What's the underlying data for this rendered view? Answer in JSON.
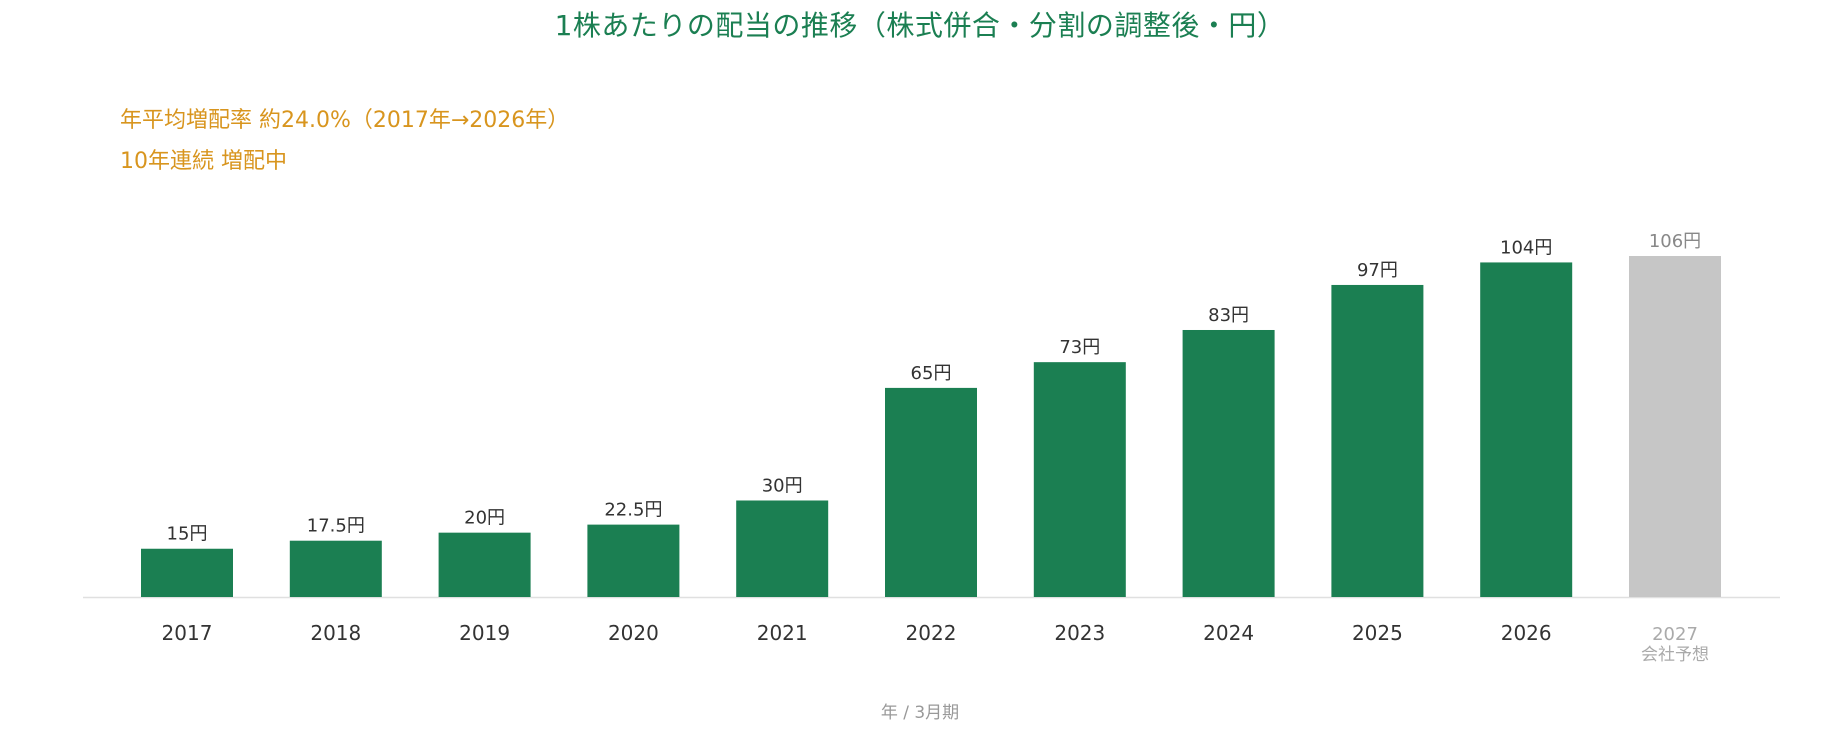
{
  "chart_data": {
    "type": "bar",
    "title": "1株あたりの配当の推移（株式併合・分割の調整後・円）",
    "annotations": [
      "年平均増配率 約24.0%（2017年→2026年）",
      "10年連続 増配中"
    ],
    "xlabel": "年 / 3月期",
    "ylabel": "",
    "unit_suffix": "円",
    "categories": [
      "2017",
      "2018",
      "2019",
      "2020",
      "2021",
      "2022",
      "2023",
      "2024",
      "2025",
      "2026",
      "2027"
    ],
    "category_sublabels": [
      "",
      "",
      "",
      "",
      "",
      "",
      "",
      "",
      "",
      "",
      "会社予想"
    ],
    "value_labels": [
      "15円",
      "17.5円",
      "20円",
      "22.5円",
      "30円",
      "65円",
      "73円",
      "83円",
      "97円",
      "104円",
      "106円"
    ],
    "values": [
      15,
      17.5,
      20,
      22.5,
      30,
      65,
      73,
      83,
      97,
      104,
      106
    ],
    "forecast": [
      false,
      false,
      false,
      false,
      false,
      false,
      false,
      false,
      false,
      false,
      true
    ],
    "ylim": [
      0,
      106
    ],
    "grid": false,
    "colors": {
      "bar": "#1b7f52",
      "forecast_bar": "#c6c6c6",
      "title": "#1b7f52",
      "annotation": "#d8951e",
      "baseline": "#e0e0e0"
    }
  }
}
